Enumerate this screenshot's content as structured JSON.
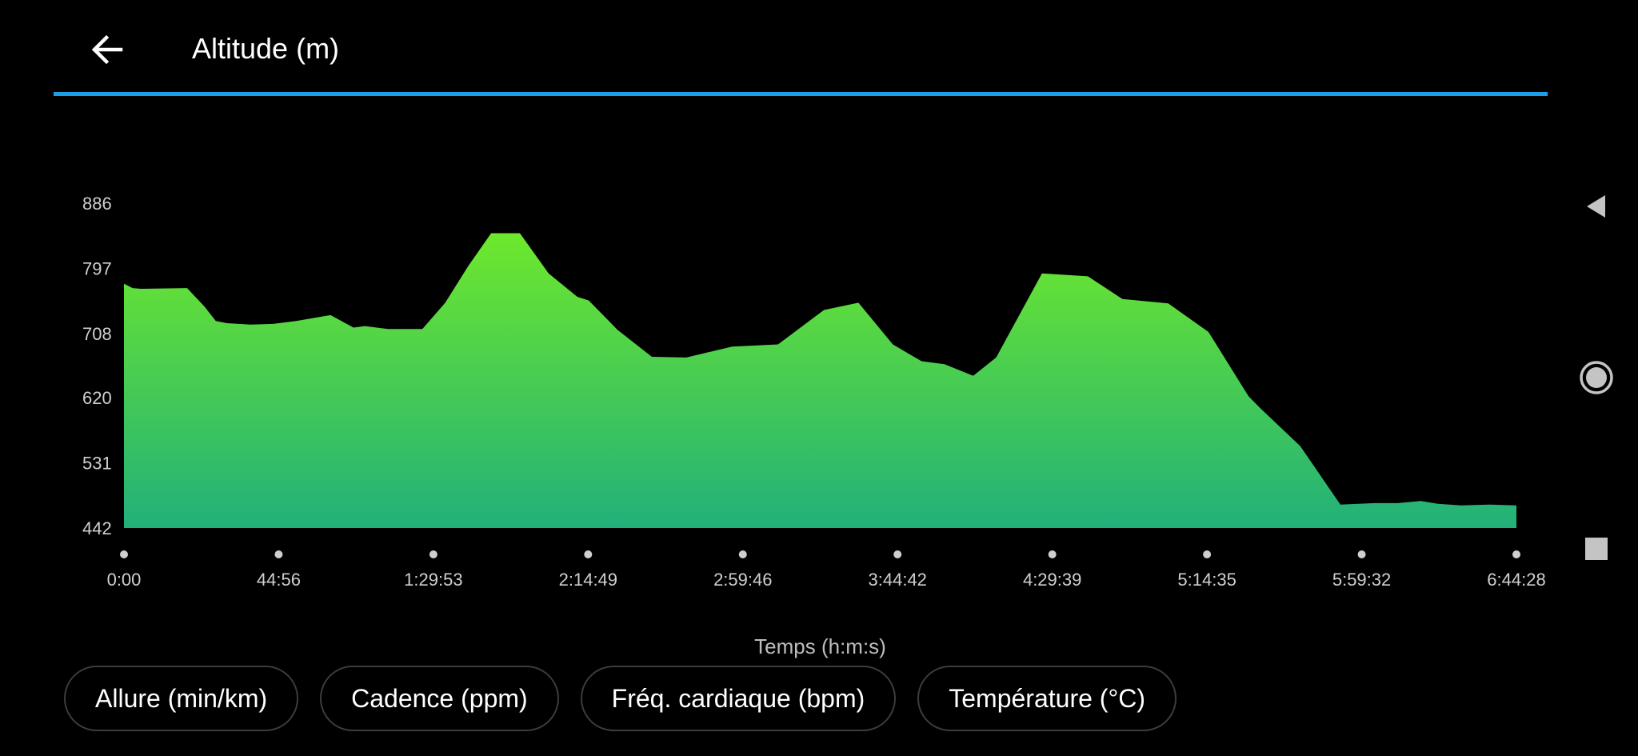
{
  "header": {
    "title": "Altitude (m)",
    "accent_color": "#1e9ee6",
    "back_icon": "arrow-left-icon"
  },
  "chart_data": {
    "type": "area",
    "title": "Altitude (m)",
    "xlabel": "Temps (h:m:s)",
    "ylabel": "",
    "ylim": [
      442,
      886
    ],
    "yticks": [
      "442",
      "531",
      "620",
      "708",
      "797",
      "886"
    ],
    "xticks": [
      "0:00",
      "44:56",
      "1:29:53",
      "2:14:49",
      "2:59:46",
      "3:44:42",
      "4:29:39",
      "5:14:35",
      "5:59:32",
      "6:44:28"
    ],
    "xlim_seconds": [
      0,
      24268
    ],
    "grid": false,
    "legend": "none",
    "colors": {
      "top": "#6ee82c",
      "bottom": "#22b07a"
    },
    "series": [
      {
        "x_seconds": [
          0,
          150,
          300,
          1100,
          1400,
          1600,
          1800,
          2200,
          2600,
          3000,
          3600,
          4000,
          4200,
          4600,
          5200,
          5600,
          6000,
          6400,
          6900,
          7400,
          7900,
          8100,
          8600,
          9200,
          9800,
          10600,
          11400,
          12200,
          12800,
          13400,
          13900,
          14300,
          14800,
          15200,
          16000,
          16800,
          17400,
          18200,
          18900,
          19600,
          19800,
          20500,
          21200,
          21800,
          22200,
          22600,
          22900,
          23300,
          23800,
          24268
        ],
        "values": [
          776,
          770,
          769,
          770,
          745,
          725,
          722,
          720,
          721,
          725,
          733,
          716,
          718,
          714,
          714,
          750,
          800,
          845,
          845,
          790,
          758,
          753,
          713,
          676,
          675,
          690,
          693,
          740,
          750,
          693,
          670,
          666,
          650,
          675,
          790,
          786,
          755,
          749,
          710,
          622,
          606,
          554,
          474,
          476,
          476,
          479,
          475,
          473,
          474,
          473
        ]
      }
    ]
  },
  "tabs": [
    {
      "label": "Allure (min/km)"
    },
    {
      "label": "Cadence (ppm)"
    },
    {
      "label": "Fréq. cardiaque (bpm)"
    },
    {
      "label": "Température (°C)"
    }
  ],
  "navbar": {
    "back_icon": "triangle-back-icon",
    "home_icon": "circle-home-icon",
    "recents_icon": "square-recents-icon"
  }
}
